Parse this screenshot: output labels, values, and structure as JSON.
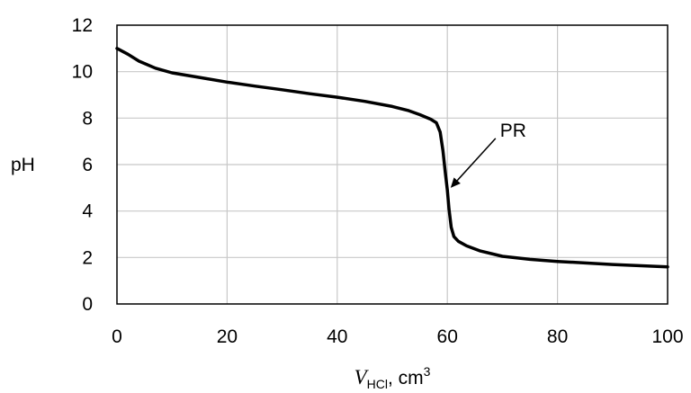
{
  "chart_data": {
    "type": "line",
    "xlabel": {
      "symbol": "V",
      "subscript": "HCl",
      "rest": ", cm",
      "superscript": "3"
    },
    "ylabel": "pH",
    "xlim": [
      0,
      100
    ],
    "ylim": [
      0,
      12
    ],
    "xticks": [
      0,
      20,
      40,
      60,
      80,
      100
    ],
    "yticks": [
      0,
      2,
      4,
      6,
      8,
      10,
      12
    ],
    "grid": true,
    "series": [
      {
        "color": "#000000",
        "x": [
          0,
          2,
          4,
          7,
          10,
          15,
          20,
          25,
          30,
          35,
          40,
          45,
          50,
          53,
          55,
          57,
          58,
          58.7,
          59.2,
          59.6,
          60,
          60.3,
          60.7,
          61.2,
          62,
          63.5,
          66,
          70,
          75,
          80,
          90,
          100
        ],
        "y": [
          11.0,
          10.75,
          10.45,
          10.15,
          9.95,
          9.75,
          9.55,
          9.38,
          9.22,
          9.05,
          8.9,
          8.72,
          8.5,
          8.32,
          8.15,
          7.95,
          7.8,
          7.4,
          6.6,
          5.7,
          4.9,
          4.1,
          3.3,
          2.9,
          2.7,
          2.5,
          2.28,
          2.05,
          1.92,
          1.83,
          1.7,
          1.6
        ]
      }
    ],
    "annotations": [
      {
        "text": "PR",
        "x": 60.1,
        "y": 5.0
      }
    ]
  }
}
